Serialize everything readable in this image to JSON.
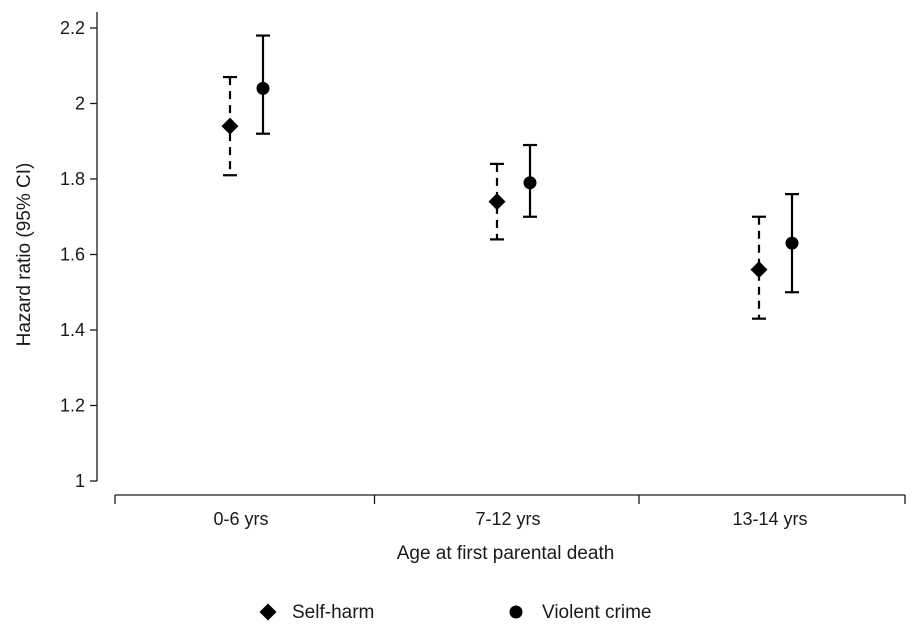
{
  "chart_data": {
    "type": "scatter",
    "subtype": "point-estimate-with-confidence-intervals",
    "categories": [
      "0-6 yrs",
      "7-12 yrs",
      "13-14 yrs"
    ],
    "xlabel": "Age at first parental death",
    "ylabel": "Hazard ratio (95% CI)",
    "ylim": [
      1,
      2.2
    ],
    "yticks": [
      1,
      1.2,
      1.4,
      1.6,
      1.8,
      2,
      2.2
    ],
    "ytick_labels": [
      "1",
      "1.2",
      "1.4",
      "1.6",
      "1.8",
      "2",
      "2.2"
    ],
    "grid": false,
    "legend_position": "bottom",
    "series": [
      {
        "name": "Self-harm",
        "marker": "diamond",
        "line_style": "dashed",
        "values": [
          1.94,
          1.74,
          1.56
        ],
        "ci_lower": [
          1.81,
          1.64,
          1.43
        ],
        "ci_upper": [
          2.07,
          1.84,
          1.7
        ]
      },
      {
        "name": "Violent crime",
        "marker": "circle",
        "line_style": "solid",
        "values": [
          2.04,
          1.79,
          1.63
        ],
        "ci_lower": [
          1.92,
          1.7,
          1.5
        ],
        "ci_upper": [
          2.18,
          1.89,
          1.76
        ]
      }
    ],
    "colors": {
      "markers": "#000000",
      "axis": "#1a1a1a"
    }
  }
}
